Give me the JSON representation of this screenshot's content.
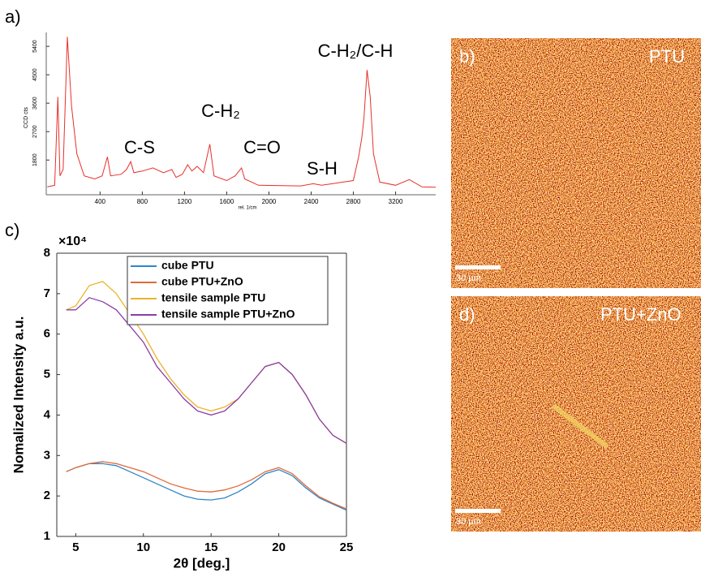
{
  "chart_data": [
    {
      "type": "line",
      "panel_label": "a)",
      "xlabel": "rel. 1/cm",
      "ylabel": "CCD cts",
      "color": "#e8302a",
      "x": [
        -100,
        -30,
        0,
        20,
        50,
        90,
        130,
        180,
        250,
        350,
        420,
        470,
        500,
        600,
        650,
        690,
        720,
        800,
        900,
        1000,
        1080,
        1120,
        1180,
        1230,
        1270,
        1320,
        1380,
        1440,
        1480,
        1600,
        1680,
        1740,
        1770,
        1900,
        2300,
        2420,
        2500,
        2600,
        2700,
        2800,
        2850,
        2880,
        2900,
        2930,
        2960,
        2990,
        3050,
        3200,
        3330,
        3450,
        3580
      ],
      "values": [
        950,
        1000,
        3800,
        1300,
        1500,
        5700,
        3500,
        2000,
        1300,
        1200,
        1300,
        1900,
        1300,
        1350,
        1500,
        1750,
        1400,
        1450,
        1550,
        1400,
        1500,
        1250,
        1350,
        1650,
        1450,
        1600,
        1400,
        2300,
        1300,
        1150,
        1300,
        1550,
        1200,
        1000,
        980,
        1050,
        1000,
        1050,
        1100,
        1150,
        1900,
        2500,
        3100,
        4650,
        3800,
        2000,
        1100,
        1000,
        1180,
        950,
        940
      ],
      "xlim": [
        -110,
        3580
      ],
      "xticks": [
        400,
        800,
        1200,
        1600,
        2000,
        2400,
        2800,
        3200
      ],
      "ylim": [
        700,
        5840
      ],
      "yticks": [
        1800,
        2700,
        3600,
        4500,
        5400
      ],
      "annotations": [
        "C-S",
        "C-H₂",
        "C=O",
        "S-H",
        "C-H₂/C-H"
      ]
    },
    {
      "type": "line",
      "panel_label": "c)",
      "xlabel": "2θ [deg.]",
      "ylabel": "Nomalized Intensity a.u.",
      "axis_multiplier": "×10⁴",
      "x": [
        4.3,
        5,
        6,
        7,
        8,
        9,
        10,
        11,
        12,
        13,
        14,
        15,
        16,
        17,
        18,
        19,
        20,
        21,
        22,
        23,
        24,
        25
      ],
      "series": [
        {
          "name": "cube PTU",
          "color": "#2f86c8",
          "values": [
            2.6,
            2.7,
            2.8,
            2.8,
            2.75,
            2.6,
            2.45,
            2.3,
            2.15,
            2.0,
            1.92,
            1.9,
            1.95,
            2.1,
            2.3,
            2.55,
            2.65,
            2.5,
            2.2,
            1.95,
            1.8,
            1.65
          ]
        },
        {
          "name": "cube PTU+ZnO",
          "color": "#e06a3a",
          "values": [
            2.6,
            2.7,
            2.8,
            2.85,
            2.8,
            2.7,
            2.6,
            2.45,
            2.3,
            2.2,
            2.12,
            2.1,
            2.15,
            2.25,
            2.4,
            2.6,
            2.7,
            2.55,
            2.25,
            1.98,
            1.82,
            1.68
          ]
        },
        {
          "name": "tensile sample PTU",
          "color": "#eab42a",
          "values": [
            6.6,
            6.7,
            7.2,
            7.3,
            7.0,
            6.5,
            6.0,
            5.4,
            4.9,
            4.5,
            4.2,
            4.1,
            4.2,
            4.4,
            4.8,
            5.2,
            5.3,
            5.0,
            4.5,
            3.9,
            3.5,
            3.3
          ]
        },
        {
          "name": "tensile sample PTU+ZnO",
          "color": "#8b3ea6",
          "values": [
            6.6,
            6.6,
            6.9,
            6.8,
            6.6,
            6.2,
            5.8,
            5.2,
            4.8,
            4.4,
            4.1,
            4.0,
            4.1,
            4.4,
            4.8,
            5.2,
            5.3,
            5.0,
            4.5,
            3.9,
            3.5,
            3.3
          ]
        }
      ],
      "xlim": [
        3.6,
        25
      ],
      "xticks": [
        5,
        10,
        15,
        20,
        25
      ],
      "ylim": [
        1,
        8
      ],
      "yticks": [
        1,
        2,
        3,
        4,
        5,
        6,
        7,
        8
      ],
      "grid": false
    }
  ],
  "images": [
    {
      "panel_label": "b)",
      "label": "PTU",
      "scale_bar": "30 µm"
    },
    {
      "panel_label": "d)",
      "label": "PTU+ZnO",
      "scale_bar": "30 µm"
    }
  ]
}
